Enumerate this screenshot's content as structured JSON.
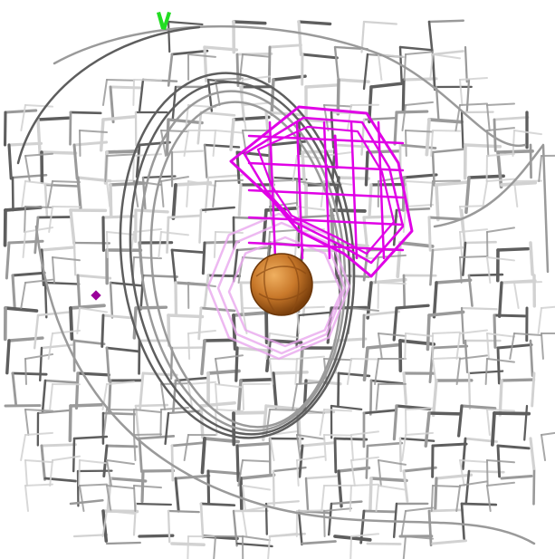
{
  "scene": {
    "background_color": "#ffffff",
    "colors": {
      "mesh_dark": "#5e5e5e",
      "mesh_mid": "#9a9a9a",
      "mesh_light": "#d2d2d2",
      "density_bright": "#e000e6",
      "density_faint": "#e8a8ee",
      "atom_fill": "#c8782a",
      "atom_shadow": "#7a3f0c",
      "atom_highlight": "#f0b060",
      "green_marker": "#22dd22",
      "small_marker": "#9a009a"
    },
    "objects": [
      {
        "name": "gray-density-mesh",
        "description_icon": "wire-mesh-icon"
      },
      {
        "name": "magenta-density-mesh",
        "description_icon": "wire-mesh-icon"
      },
      {
        "name": "faint-magenta-contours",
        "description_icon": "wire-mesh-icon"
      },
      {
        "name": "metal-ion-sphere",
        "description_icon": "sphere-icon"
      },
      {
        "name": "green-atom-marker",
        "description_icon": "marker-icon"
      },
      {
        "name": "purple-atom-marker",
        "description_icon": "marker-icon"
      }
    ]
  }
}
